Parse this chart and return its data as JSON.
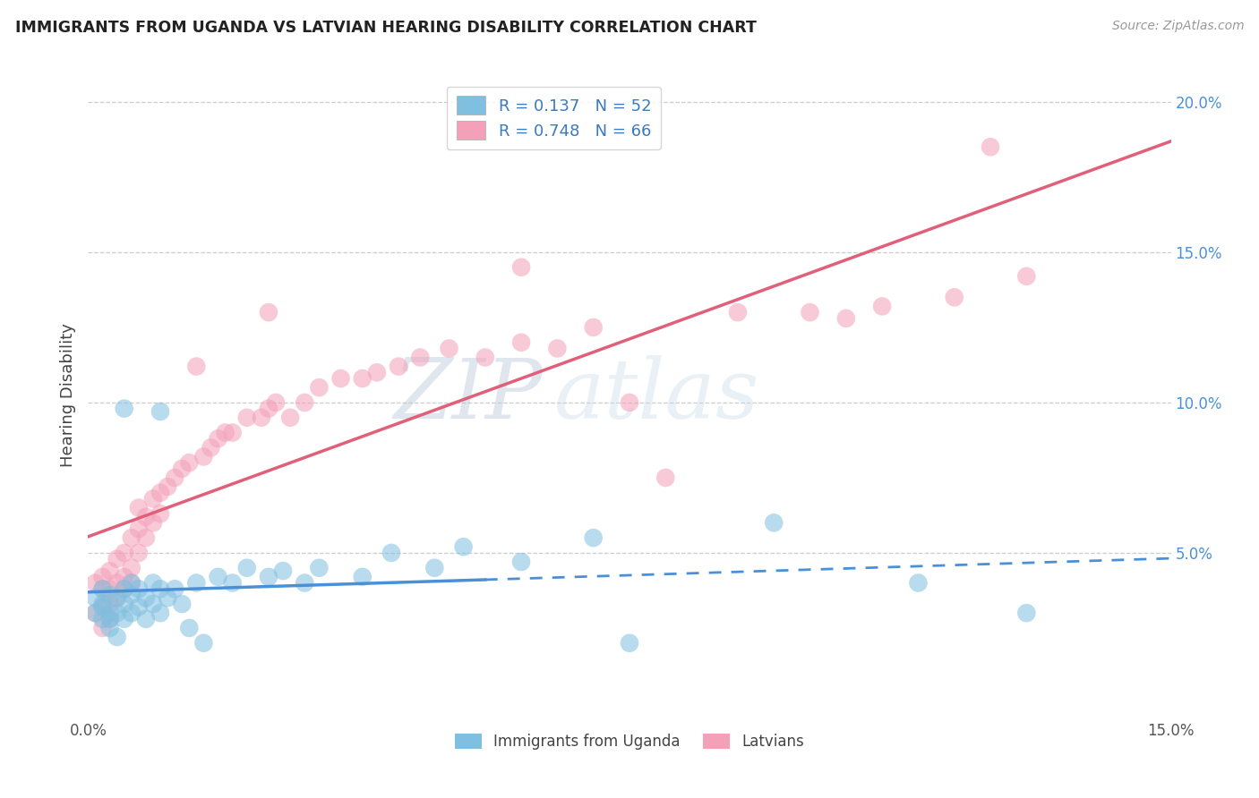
{
  "title": "IMMIGRANTS FROM UGANDA VS LATVIAN HEARING DISABILITY CORRELATION CHART",
  "source": "Source: ZipAtlas.com",
  "ylabel": "Hearing Disability",
  "xlim": [
    0.0,
    0.15
  ],
  "ylim": [
    -0.005,
    0.21
  ],
  "ytick_right_vals": [
    0.0,
    0.05,
    0.1,
    0.15,
    0.2
  ],
  "ytick_right_labels": [
    "",
    "5.0%",
    "10.0%",
    "15.0%",
    "20.0%"
  ],
  "blue_r": 0.137,
  "blue_n": 52,
  "pink_r": 0.748,
  "pink_n": 66,
  "blue_color": "#7fbfdf",
  "pink_color": "#f4a0b8",
  "blue_line_color": "#4a90d9",
  "pink_line_color": "#e0607a",
  "blue_line_solid_end": 0.055,
  "watermark_text": "ZIPatlas",
  "grid_color": "#cccccc",
  "background_color": "#ffffff",
  "blue_scatter_x": [
    0.001,
    0.001,
    0.002,
    0.002,
    0.002,
    0.002,
    0.003,
    0.003,
    0.003,
    0.003,
    0.004,
    0.004,
    0.004,
    0.005,
    0.005,
    0.005,
    0.006,
    0.006,
    0.006,
    0.007,
    0.007,
    0.008,
    0.008,
    0.009,
    0.009,
    0.01,
    0.01,
    0.011,
    0.012,
    0.013,
    0.014,
    0.015,
    0.016,
    0.018,
    0.02,
    0.022,
    0.025,
    0.027,
    0.03,
    0.032,
    0.038,
    0.042,
    0.048,
    0.052,
    0.06,
    0.07,
    0.075,
    0.095,
    0.115,
    0.13,
    0.005,
    0.01
  ],
  "blue_scatter_y": [
    0.03,
    0.035,
    0.033,
    0.038,
    0.028,
    0.032,
    0.036,
    0.03,
    0.025,
    0.028,
    0.035,
    0.03,
    0.022,
    0.038,
    0.033,
    0.028,
    0.04,
    0.036,
    0.03,
    0.038,
    0.032,
    0.035,
    0.028,
    0.04,
    0.033,
    0.038,
    0.03,
    0.035,
    0.038,
    0.033,
    0.025,
    0.04,
    0.02,
    0.042,
    0.04,
    0.045,
    0.042,
    0.044,
    0.04,
    0.045,
    0.042,
    0.05,
    0.045,
    0.052,
    0.047,
    0.055,
    0.02,
    0.06,
    0.04,
    0.03,
    0.098,
    0.097
  ],
  "pink_scatter_x": [
    0.001,
    0.001,
    0.002,
    0.002,
    0.002,
    0.002,
    0.003,
    0.003,
    0.003,
    0.003,
    0.004,
    0.004,
    0.004,
    0.005,
    0.005,
    0.005,
    0.006,
    0.006,
    0.006,
    0.007,
    0.007,
    0.007,
    0.008,
    0.008,
    0.009,
    0.009,
    0.01,
    0.01,
    0.011,
    0.012,
    0.013,
    0.014,
    0.015,
    0.016,
    0.017,
    0.018,
    0.019,
    0.02,
    0.022,
    0.024,
    0.025,
    0.026,
    0.028,
    0.03,
    0.032,
    0.035,
    0.038,
    0.04,
    0.043,
    0.046,
    0.05,
    0.055,
    0.06,
    0.065,
    0.07,
    0.075,
    0.08,
    0.09,
    0.1,
    0.105,
    0.11,
    0.12,
    0.13,
    0.025,
    0.06,
    0.125
  ],
  "pink_scatter_y": [
    0.03,
    0.04,
    0.032,
    0.038,
    0.025,
    0.042,
    0.038,
    0.044,
    0.033,
    0.028,
    0.04,
    0.048,
    0.035,
    0.042,
    0.05,
    0.038,
    0.045,
    0.055,
    0.04,
    0.05,
    0.058,
    0.065,
    0.055,
    0.062,
    0.06,
    0.068,
    0.063,
    0.07,
    0.072,
    0.075,
    0.078,
    0.08,
    0.112,
    0.082,
    0.085,
    0.088,
    0.09,
    0.09,
    0.095,
    0.095,
    0.098,
    0.1,
    0.095,
    0.1,
    0.105,
    0.108,
    0.108,
    0.11,
    0.112,
    0.115,
    0.118,
    0.115,
    0.12,
    0.118,
    0.125,
    0.1,
    0.075,
    0.13,
    0.13,
    0.128,
    0.132,
    0.135,
    0.142,
    0.13,
    0.145,
    0.185
  ]
}
